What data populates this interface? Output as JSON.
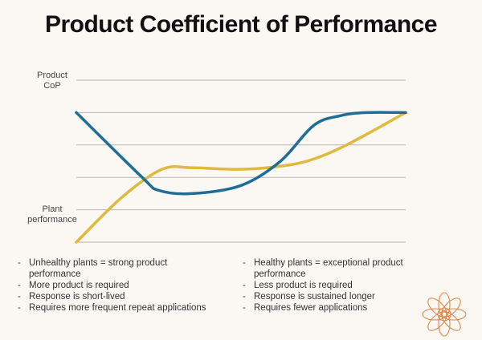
{
  "title": "Product Coefficient of Performance",
  "chart_data": {
    "type": "line",
    "ylabel_top": [
      "Product",
      "CoP"
    ],
    "ylabel_bottom": [
      "Plant",
      "performance"
    ],
    "grid": true,
    "xlim": [
      0,
      100
    ],
    "ylim": [
      0,
      100
    ],
    "gridlines": [
      0,
      20,
      40,
      60,
      80,
      100
    ],
    "series": [
      {
        "color": "#1f6e96",
        "x": [
          0,
          20,
          25,
          35,
          50,
          62,
          72,
          80,
          88,
          100
        ],
        "y": [
          80,
          40,
          32,
          30,
          35,
          50,
          72,
          78,
          80,
          80
        ]
      },
      {
        "color": "#e0b93d",
        "x": [
          0,
          14,
          26,
          35,
          48,
          58,
          70,
          82,
          100
        ],
        "y": [
          0,
          28,
          45,
          46,
          45,
          46,
          50,
          60,
          80
        ]
      }
    ]
  },
  "notes_left": [
    [
      "Unhealthy plants = strong product",
      "performance"
    ],
    [
      "More product is required"
    ],
    [
      "Response is short-lived"
    ],
    [
      "Requires more frequent repeat applications"
    ]
  ],
  "notes_right": [
    [
      "Healthy plants = exceptional product",
      "performance"
    ],
    [
      "Less product is required"
    ],
    [
      "Response is sustained longer"
    ],
    [
      "Requires fewer applications"
    ]
  ],
  "logo": {
    "icon": "flower-mandala-icon",
    "color": "#e0894c"
  }
}
